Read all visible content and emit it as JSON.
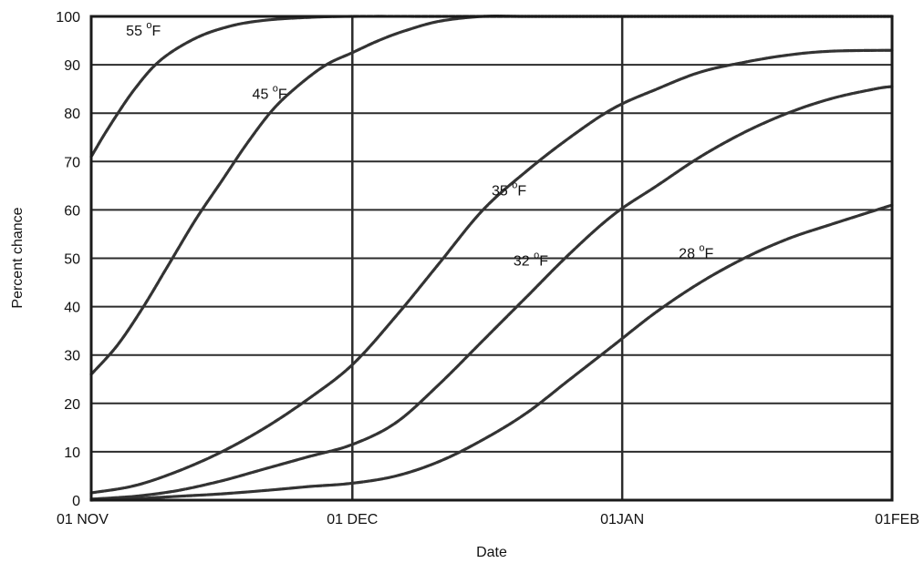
{
  "chart_data": {
    "type": "line",
    "title": "",
    "xlabel": "Date",
    "ylabel": "Percent chance",
    "x_unit": "days after 01 NOV",
    "x_ticks": [
      {
        "x": 0,
        "label": "01 NOV"
      },
      {
        "x": 30,
        "label": "01 DEC"
      },
      {
        "x": 61,
        "label": "01JAN"
      },
      {
        "x": 92,
        "label": "01FEB"
      }
    ],
    "xlim": [
      0,
      92
    ],
    "ylim": [
      0,
      100
    ],
    "y_ticks": [
      0,
      10,
      20,
      30,
      40,
      50,
      60,
      70,
      80,
      90,
      100
    ],
    "grid": true,
    "legend": "none",
    "series": [
      {
        "name": "55 °F",
        "label_parts": [
          "55 ",
          "o",
          "F"
        ],
        "label_at": [
          4,
          96
        ],
        "x": [
          0,
          2,
          5,
          8,
          12,
          16,
          20,
          25,
          30,
          40,
          50,
          60,
          70,
          80,
          92
        ],
        "values": [
          71,
          77,
          85,
          91,
          95.5,
          98,
          99.2,
          99.8,
          100,
          100,
          100,
          100,
          100,
          100,
          100
        ]
      },
      {
        "name": "45 °F",
        "label_parts": [
          "45 ",
          "o",
          "F"
        ],
        "label_at": [
          18.5,
          83
        ],
        "x": [
          0,
          3,
          6,
          9,
          12,
          15,
          18,
          21,
          24,
          27,
          30,
          33,
          36,
          40,
          45,
          50,
          60,
          70,
          80,
          92
        ],
        "values": [
          26,
          32,
          40,
          49,
          58,
          66,
          74,
          81,
          86,
          90,
          92.5,
          95,
          97,
          99,
          100,
          100,
          100,
          100,
          100,
          100
        ]
      },
      {
        "name": "35 °F",
        "label_parts": [
          "35 ",
          "o",
          "F"
        ],
        "label_at": [
          46,
          63
        ],
        "x": [
          0,
          5,
          10,
          15,
          20,
          25,
          30,
          35,
          40,
          45,
          50,
          55,
          60,
          65,
          70,
          75,
          80,
          85,
          92
        ],
        "values": [
          1.5,
          3,
          6,
          10,
          15,
          21,
          28,
          38,
          49,
          60,
          68,
          75,
          81,
          85,
          88.5,
          90.5,
          92,
          92.8,
          93
        ]
      },
      {
        "name": "32 °F",
        "label_parts": [
          "32 ",
          "o",
          "F"
        ],
        "label_at": [
          48.5,
          48.5
        ],
        "x": [
          0,
          5,
          10,
          15,
          20,
          25,
          30,
          35,
          40,
          45,
          50,
          55,
          60,
          65,
          70,
          75,
          80,
          85,
          90,
          92
        ],
        "values": [
          0.2,
          0.8,
          2,
          4,
          6.5,
          9,
          11.5,
          16,
          24,
          33,
          42,
          51,
          59,
          65,
          71,
          76,
          80,
          83,
          85,
          85.5
        ]
      },
      {
        "name": "28 °F",
        "label_parts": [
          "28 ",
          "o",
          "F"
        ],
        "label_at": [
          67.5,
          50
        ],
        "x": [
          0,
          5,
          10,
          15,
          20,
          25,
          30,
          35,
          40,
          45,
          50,
          55,
          60,
          65,
          70,
          75,
          80,
          85,
          92
        ],
        "values": [
          0,
          0.3,
          0.8,
          1.3,
          2,
          2.8,
          3.5,
          5,
          8,
          12.5,
          18,
          25,
          32,
          39,
          45,
          50,
          54,
          57,
          61
        ]
      }
    ]
  }
}
